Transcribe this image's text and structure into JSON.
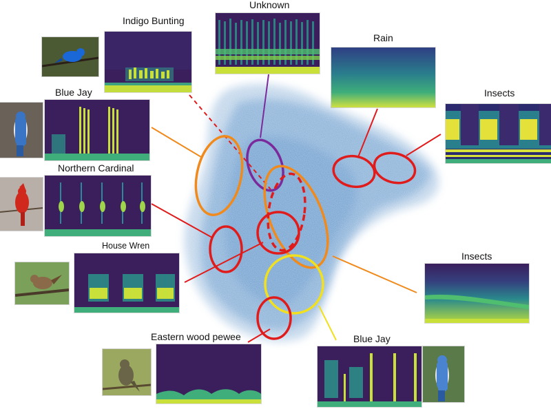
{
  "panels": [
    {
      "id": "indigo-bunting",
      "label": "Indigo Bunting",
      "color": "#e01b1b"
    },
    {
      "id": "unknown",
      "label": "Unknown",
      "color": "#7a2a9a"
    },
    {
      "id": "rain",
      "label": "Rain",
      "color": "#e01b1b"
    },
    {
      "id": "insects-top",
      "label": "Insects",
      "color": "#e01b1b"
    },
    {
      "id": "blue-jay-left",
      "label": "Blue Jay",
      "color": "#f08a1c"
    },
    {
      "id": "northern-cardinal",
      "label": "Northern Cardinal",
      "color": "#e01b1b"
    },
    {
      "id": "house-wren",
      "label": "House Wren",
      "color": "#e01b1b"
    },
    {
      "id": "insects-bottom",
      "label": "Insects",
      "color": "#f08a1c"
    },
    {
      "id": "eastern-wood-pewee",
      "label": "Eastern wood pewee",
      "color": "#e01b1b"
    },
    {
      "id": "blue-jay-bottom",
      "label": "Blue Jay",
      "color": "#f0e020"
    }
  ],
  "colors": {
    "scatter": "#3f7fc0",
    "red": "#e01b1b",
    "orange": "#f08a1c",
    "purple": "#7a2a9a",
    "yellow": "#f0e020",
    "spec_bg": "#3b1f5e",
    "spec_mid": "#2c8c8c",
    "spec_high": "#d9e43a"
  }
}
